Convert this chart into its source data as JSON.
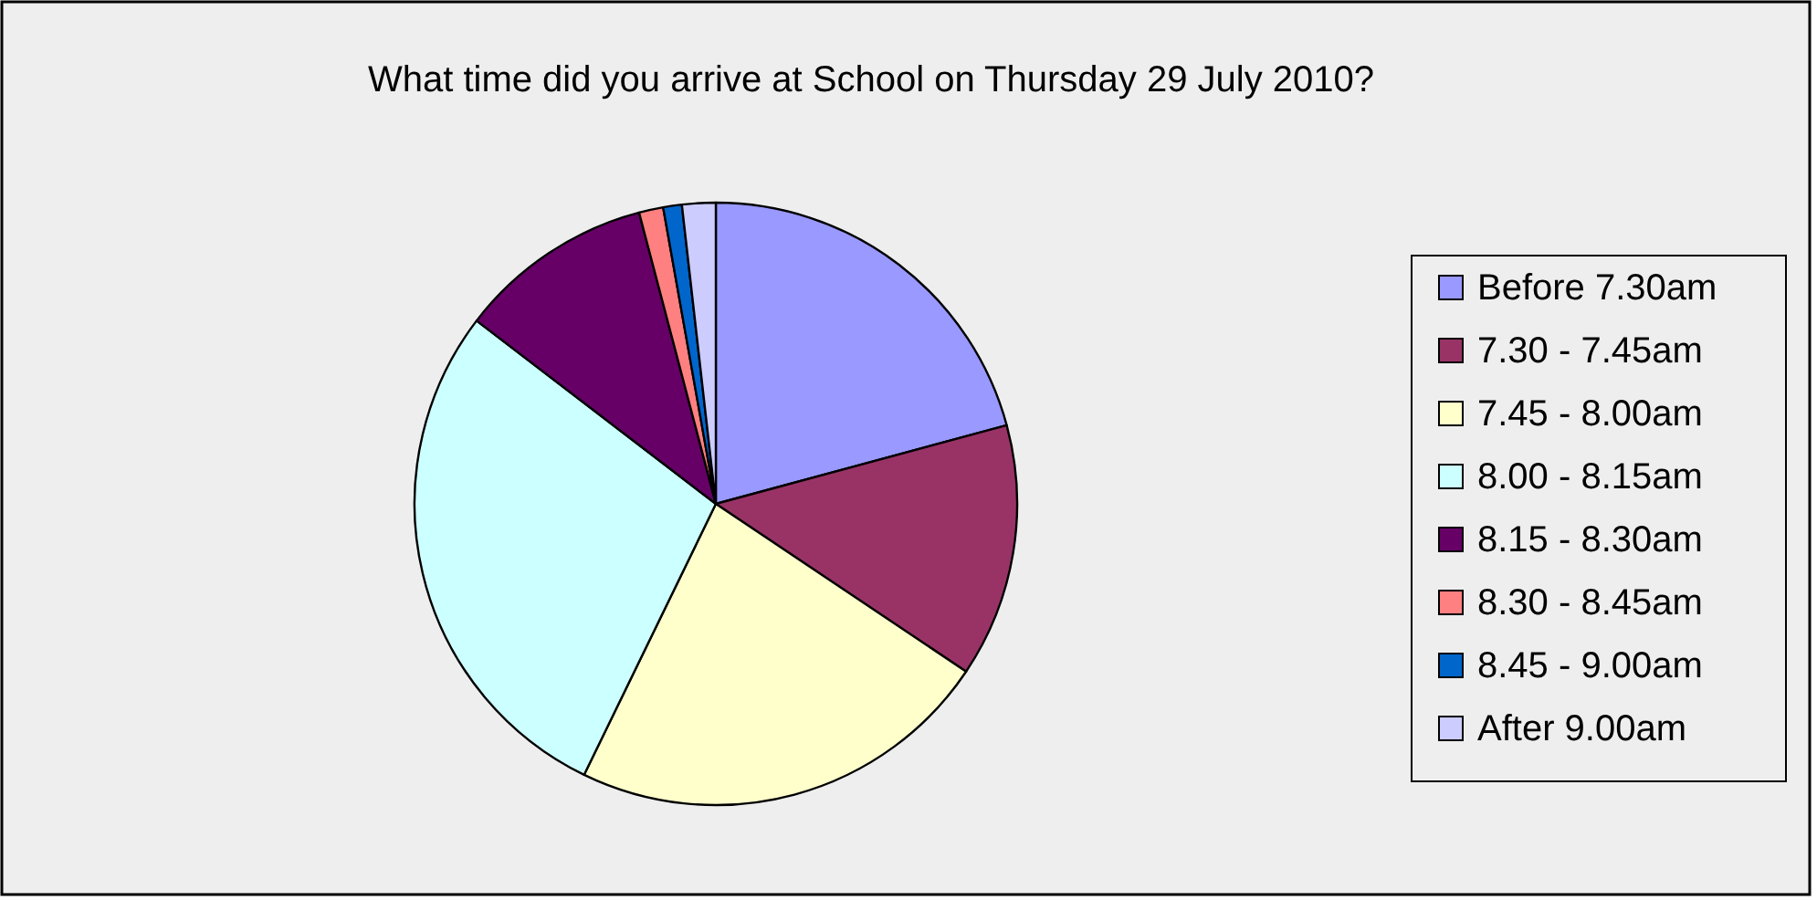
{
  "chart_data": {
    "type": "pie",
    "title": "What time did you arrive at School on Thursday 29 July 2010?",
    "categories": [
      "Before 7.30am",
      "7.30 - 7.45am",
      "7.45 - 8.00am",
      "8.00 - 8.15am",
      "8.15 - 8.30am",
      "8.30 - 8.45am",
      "8.45 - 9.00am",
      "After 9.00am"
    ],
    "values": [
      20.8,
      13.6,
      22.8,
      28.2,
      10.5,
      1.3,
      1.0,
      1.8
    ],
    "colors": [
      "#9999ff",
      "#993366",
      "#ffffcc",
      "#ccffff",
      "#660066",
      "#ff8080",
      "#0066cc",
      "#ccccff"
    ],
    "legend": "right"
  }
}
